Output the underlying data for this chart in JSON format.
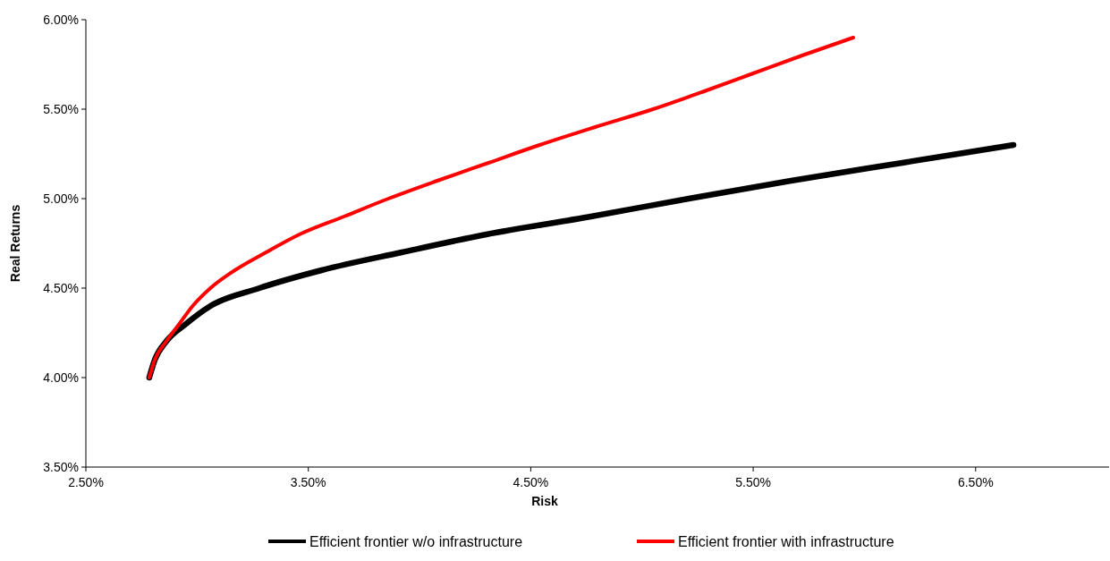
{
  "chart_data": {
    "type": "line",
    "xlabel": "Risk",
    "ylabel": "Real Returns",
    "xlim": [
      2.5,
      7.1
    ],
    "ylim": [
      3.5,
      6.0
    ],
    "xticks": [
      {
        "value": 2.5,
        "label": "2.50%"
      },
      {
        "value": 3.5,
        "label": "3.50%"
      },
      {
        "value": 4.5,
        "label": "4.50%"
      },
      {
        "value": 5.5,
        "label": "5.50%"
      },
      {
        "value": 6.5,
        "label": "6.50%"
      }
    ],
    "yticks": [
      {
        "value": 3.5,
        "label": "3.50%"
      },
      {
        "value": 4.0,
        "label": "4.00%"
      },
      {
        "value": 4.5,
        "label": "4.50%"
      },
      {
        "value": 5.0,
        "label": "5.00%"
      },
      {
        "value": 5.5,
        "label": "5.50%"
      },
      {
        "value": 6.0,
        "label": "6.00%"
      }
    ],
    "grid": false,
    "legend": "bottom",
    "line_style": "solid",
    "series": [
      {
        "name": "Efficient frontier w/o infrastructure",
        "color": "#000000",
        "x": [
          2.785,
          2.81,
          2.86,
          2.95,
          3.06,
          3.28,
          3.56,
          3.92,
          4.3,
          4.77,
          5.21,
          5.67,
          6.17,
          6.67
        ],
        "values": [
          4.0,
          4.1,
          4.2,
          4.3,
          4.4,
          4.5,
          4.6,
          4.7,
          4.8,
          4.9,
          5.0,
          5.1,
          5.2,
          5.3
        ]
      },
      {
        "name": "Efficient frontier with infrastructure",
        "color": "#ff0000",
        "x": [
          2.785,
          2.81,
          2.86,
          2.92,
          2.98,
          3.06,
          3.17,
          3.31,
          3.46,
          3.66,
          3.86,
          4.08,
          4.31,
          4.54,
          4.79,
          5.05,
          5.28,
          5.5,
          5.72,
          5.95
        ],
        "values": [
          4.0,
          4.1,
          4.2,
          4.3,
          4.4,
          4.5,
          4.6,
          4.7,
          4.8,
          4.9,
          5.0,
          5.1,
          5.2,
          5.3,
          5.4,
          5.5,
          5.6,
          5.7,
          5.8,
          5.9
        ]
      }
    ]
  }
}
